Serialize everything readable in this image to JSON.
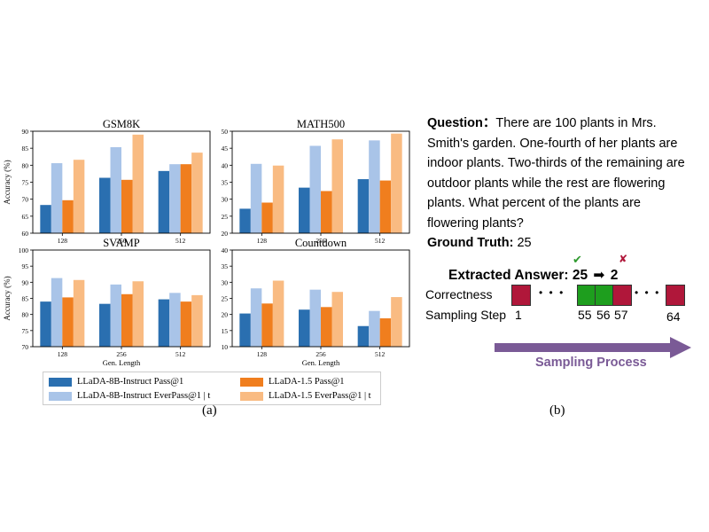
{
  "chart_data": [
    {
      "type": "bar",
      "title": "GSM8K",
      "ylabel": "Accuracy (%)",
      "xlabel": "",
      "ylim": [
        60,
        90
      ],
      "yticks": [
        60,
        65,
        70,
        75,
        80,
        85,
        90
      ],
      "categories": [
        "128",
        "256",
        "512"
      ],
      "series": [
        {
          "name": "LLaDA-8B-Instruct Pass@1",
          "values": [
            68.3,
            76.3,
            78.3
          ],
          "color": "#2a6fb0"
        },
        {
          "name": "LLaDA-8B-Instruct EverPass@1 | t",
          "values": [
            80.6,
            85.3,
            80.3
          ],
          "color": "#a9c4e8"
        },
        {
          "name": "LLaDA-1.5 Pass@1",
          "values": [
            69.7,
            75.7,
            80.3
          ],
          "color": "#f07e1e"
        },
        {
          "name": "LLaDA-1.5 EverPass@1 | t",
          "values": [
            81.6,
            89.0,
            83.7
          ],
          "color": "#f9bb82"
        }
      ]
    },
    {
      "type": "bar",
      "title": "MATH500",
      "ylabel": "",
      "xlabel": "",
      "ylim": [
        20,
        50
      ],
      "yticks": [
        20,
        25,
        30,
        35,
        40,
        45,
        50
      ],
      "categories": [
        "128",
        "256",
        "512"
      ],
      "series": [
        {
          "name": "LLaDA-8B-Instruct Pass@1",
          "values": [
            27.2,
            33.4,
            35.9
          ],
          "color": "#2a6fb0"
        },
        {
          "name": "LLaDA-8B-Instruct EverPass@1 | t",
          "values": [
            40.4,
            45.7,
            47.3
          ],
          "color": "#a9c4e8"
        },
        {
          "name": "LLaDA-1.5 Pass@1",
          "values": [
            29.0,
            32.4,
            35.5
          ],
          "color": "#f07e1e"
        },
        {
          "name": "LLaDA-1.5 EverPass@1 | t",
          "values": [
            39.9,
            47.6,
            49.3
          ],
          "color": "#f9bb82"
        }
      ]
    },
    {
      "type": "bar",
      "title": "SVAMP",
      "ylabel": "Accuracy (%)",
      "xlabel": "Gen. Length",
      "ylim": [
        70,
        100
      ],
      "yticks": [
        70,
        75,
        80,
        85,
        90,
        95,
        100
      ],
      "categories": [
        "128",
        "256",
        "512"
      ],
      "series": [
        {
          "name": "LLaDA-8B-Instruct Pass@1",
          "values": [
            84.0,
            83.3,
            84.7
          ],
          "color": "#2a6fb0"
        },
        {
          "name": "LLaDA-8B-Instruct EverPass@1 | t",
          "values": [
            91.3,
            89.3,
            86.7
          ],
          "color": "#a9c4e8"
        },
        {
          "name": "LLaDA-1.5 Pass@1",
          "values": [
            85.3,
            86.3,
            84.0
          ],
          "color": "#f07e1e"
        },
        {
          "name": "LLaDA-1.5 EverPass@1 | t",
          "values": [
            90.7,
            90.3,
            86.0
          ],
          "color": "#f9bb82"
        }
      ]
    },
    {
      "type": "bar",
      "title": "Countdown",
      "ylabel": "",
      "xlabel": "Gen. Length",
      "ylim": [
        10,
        40
      ],
      "yticks": [
        10,
        15,
        20,
        25,
        30,
        35,
        40
      ],
      "categories": [
        "128",
        "256",
        "512"
      ],
      "series": [
        {
          "name": "LLaDA-8B-Instruct Pass@1",
          "values": [
            20.3,
            21.5,
            16.4
          ],
          "color": "#2a6fb0"
        },
        {
          "name": "LLaDA-8B-Instruct EverPass@1 | t",
          "values": [
            28.1,
            27.7,
            21.1
          ],
          "color": "#a9c4e8"
        },
        {
          "name": "LLaDA-1.5 Pass@1",
          "values": [
            23.4,
            22.3,
            18.8
          ],
          "color": "#f07e1e"
        },
        {
          "name": "LLaDA-1.5 EverPass@1 | t",
          "values": [
            30.5,
            27.0,
            25.4
          ],
          "color": "#f9bb82"
        }
      ]
    }
  ],
  "legend": {
    "items": [
      {
        "label": "LLaDA-8B-Instruct Pass@1",
        "color": "#2a6fb0"
      },
      {
        "label": "LLaDA-1.5 Pass@1",
        "color": "#f07e1e"
      },
      {
        "label": "LLaDA-8B-Instruct EverPass@1 | t",
        "color": "#a9c4e8"
      },
      {
        "label": "LLaDA-1.5 EverPass@1 | t",
        "color": "#f9bb82"
      }
    ]
  },
  "captions": {
    "a": "(a)",
    "b": "(b)"
  },
  "panel_b": {
    "question_label": "Question：",
    "question_lines": [
      "There are 100 plants in Mrs.",
      "Smith's garden. One-fourth of her plants are",
      "indoor plants. Two-thirds of the remaining are",
      "outdoor plants while the rest are flowering",
      "plants. What percent of the plants are",
      "flowering plants?"
    ],
    "ground_truth_label": "Ground Truth:",
    "ground_truth_value": "25",
    "extracted_label": "Extracted Answer:",
    "extracted_first": "25",
    "extracted_second": "2",
    "arrow_glyph": "➡",
    "check_glyph": "✔",
    "cross_glyph": "✘",
    "correctness_label": "Correctness",
    "sampling_step_label": "Sampling Step",
    "dots": "• • •",
    "steps": [
      "1",
      "55",
      "56",
      "57",
      "64"
    ],
    "process_label": "Sampling Process",
    "colors": {
      "correct": "#1e9e1e",
      "wrong": "#b0173a",
      "arrow": "#7a5a96",
      "check": "#2f9a2f",
      "cross": "#b0173a"
    }
  }
}
